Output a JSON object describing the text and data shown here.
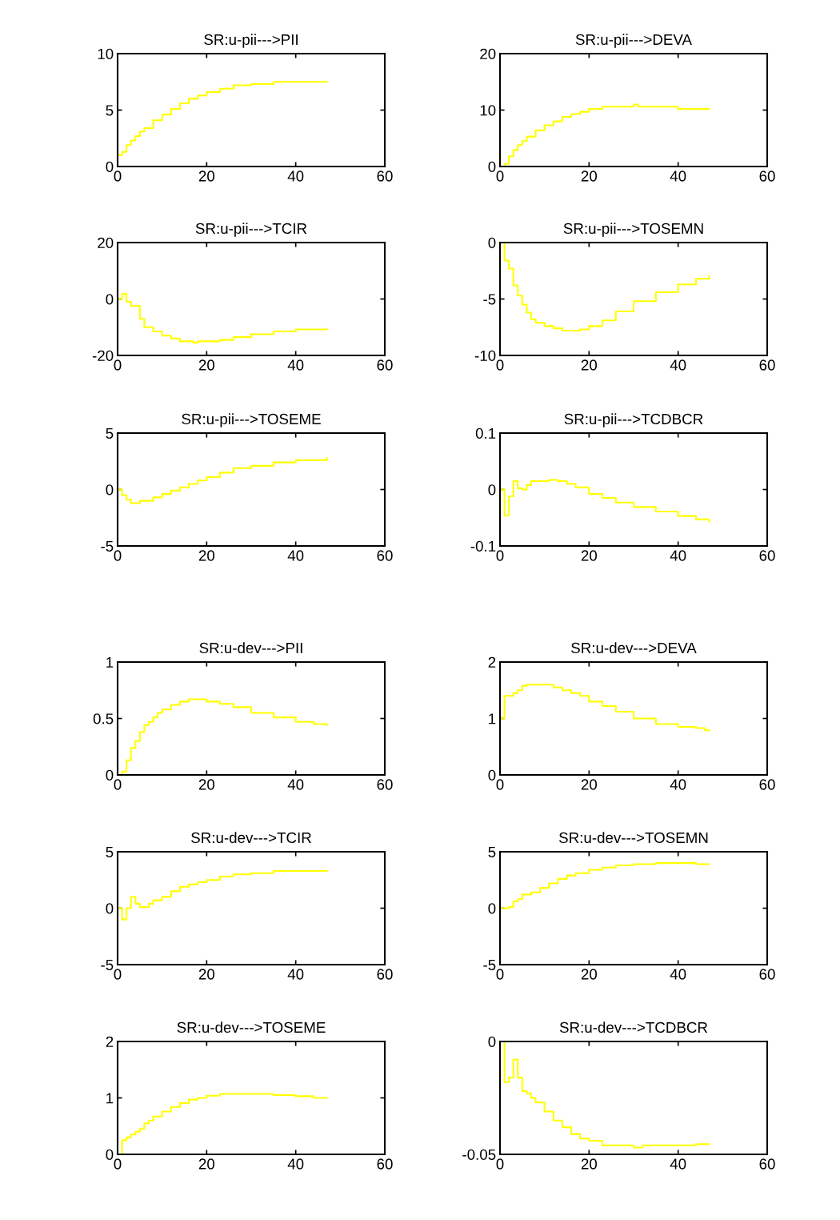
{
  "chart_data": [
    {
      "type": "step",
      "title": "SR:u-pii--->PII",
      "color": "#ffff00",
      "xlim": [
        0,
        60
      ],
      "xticks": [
        0,
        20,
        40,
        60
      ],
      "ylim": [
        0,
        10
      ],
      "yticks": [
        0,
        5,
        10
      ],
      "x": [
        0,
        1,
        2,
        3,
        4,
        5,
        6,
        8,
        10,
        12,
        14,
        16,
        18,
        20,
        23,
        26,
        30,
        35,
        40,
        47
      ],
      "values": [
        1.0,
        1.3,
        1.9,
        2.3,
        2.7,
        3.1,
        3.4,
        4.1,
        4.6,
        5.1,
        5.6,
        6.0,
        6.3,
        6.6,
        6.9,
        7.2,
        7.3,
        7.5,
        7.5,
        7.5
      ]
    },
    {
      "type": "step",
      "title": "SR:u-pii--->DEVA",
      "color": "#ffff00",
      "xlim": [
        0,
        60
      ],
      "xticks": [
        0,
        20,
        40,
        60
      ],
      "ylim": [
        0,
        20
      ],
      "yticks": [
        0,
        10,
        20
      ],
      "x": [
        0,
        1,
        2,
        3,
        4,
        5,
        6,
        8,
        10,
        12,
        14,
        16,
        18,
        20,
        23,
        26,
        30,
        31,
        35,
        40,
        47
      ],
      "values": [
        0,
        0.5,
        1.8,
        2.9,
        3.8,
        4.5,
        5.3,
        6.4,
        7.3,
        8.0,
        8.8,
        9.3,
        9.7,
        10.2,
        10.6,
        10.6,
        11.0,
        10.6,
        10.6,
        10.2,
        10.2
      ]
    },
    {
      "type": "step",
      "title": "SR:u-pii--->TCIR",
      "color": "#ffff00",
      "xlim": [
        0,
        60
      ],
      "xticks": [
        0,
        20,
        40,
        60
      ],
      "ylim": [
        -20,
        20
      ],
      "yticks": [
        -20,
        0,
        20
      ],
      "x": [
        0,
        1,
        2,
        3,
        5,
        6,
        8,
        10,
        12,
        14,
        17,
        18,
        23,
        26,
        30,
        35,
        40,
        47
      ],
      "values": [
        0,
        1.8,
        -1,
        -2.5,
        -7,
        -10,
        -11.5,
        -13,
        -14,
        -15,
        -15.5,
        -15,
        -14.5,
        -13.5,
        -12.5,
        -11.5,
        -10.8,
        -10.5
      ]
    },
    {
      "type": "step",
      "title": "SR:u-pii--->TOSEMN",
      "color": "#ffff00",
      "xlim": [
        0,
        60
      ],
      "xticks": [
        0,
        20,
        40,
        60
      ],
      "ylim": [
        -10,
        0
      ],
      "yticks": [
        -10,
        -5,
        0
      ],
      "x": [
        0,
        1,
        2,
        3,
        4,
        5,
        6,
        7,
        8,
        10,
        12,
        14,
        17,
        18,
        20,
        23,
        26,
        30,
        35,
        40,
        44,
        47
      ],
      "values": [
        0,
        -1.6,
        -2.3,
        -3.8,
        -4.7,
        -5.5,
        -6.2,
        -6.8,
        -7.1,
        -7.4,
        -7.6,
        -7.8,
        -7.8,
        -7.7,
        -7.4,
        -6.9,
        -6.1,
        -5.2,
        -4.4,
        -3.7,
        -3.2,
        -3.0
      ]
    },
    {
      "type": "step",
      "title": "SR:u-pii--->TOSEME",
      "color": "#ffff00",
      "xlim": [
        0,
        60
      ],
      "xticks": [
        0,
        20,
        40,
        60
      ],
      "ylim": [
        -5,
        5
      ],
      "yticks": [
        -5,
        0,
        5
      ],
      "x": [
        0,
        1,
        2,
        3,
        5,
        8,
        10,
        12,
        14,
        16,
        18,
        20,
        23,
        26,
        30,
        35,
        40,
        46,
        47
      ],
      "values": [
        0,
        -0.5,
        -0.9,
        -1.2,
        -1.0,
        -0.7,
        -0.4,
        -0.1,
        0.2,
        0.5,
        0.8,
        1.1,
        1.5,
        1.9,
        2.1,
        2.4,
        2.6,
        2.6,
        2.8
      ]
    },
    {
      "type": "step",
      "title": "SR:u-pii--->TCDBCR",
      "color": "#ffff00",
      "xlim": [
        0,
        60
      ],
      "xticks": [
        0,
        20,
        40,
        60
      ],
      "ylim": [
        -0.1,
        0.1
      ],
      "yticks": [
        -0.1,
        0,
        0.1
      ],
      "x": [
        0,
        1,
        2,
        3,
        4,
        5,
        6,
        7,
        11,
        13,
        15,
        17,
        20,
        23,
        26,
        30,
        35,
        40,
        44,
        47
      ],
      "values": [
        0,
        -0.046,
        -0.012,
        0.015,
        0.002,
        0.0,
        0.008,
        0.015,
        0.017,
        0.015,
        0.01,
        0.004,
        -0.008,
        -0.015,
        -0.023,
        -0.031,
        -0.039,
        -0.047,
        -0.053,
        -0.057
      ]
    },
    {
      "type": "step",
      "title": "SR:u-dev--->PII",
      "color": "#ffff00",
      "xlim": [
        0,
        60
      ],
      "xticks": [
        0,
        20,
        40,
        60
      ],
      "ylim": [
        0,
        1
      ],
      "yticks": [
        0,
        0.5,
        1
      ],
      "x": [
        0,
        1,
        2,
        3,
        4,
        5,
        6,
        7,
        8,
        9,
        10,
        12,
        14,
        16,
        18,
        20,
        23,
        26,
        30,
        35,
        40,
        44,
        47
      ],
      "values": [
        0,
        0.03,
        0.13,
        0.24,
        0.3,
        0.38,
        0.44,
        0.47,
        0.51,
        0.55,
        0.58,
        0.62,
        0.65,
        0.67,
        0.67,
        0.65,
        0.63,
        0.6,
        0.55,
        0.51,
        0.47,
        0.45,
        0.44
      ]
    },
    {
      "type": "step",
      "title": "SR:u-dev--->DEVA",
      "color": "#ffff00",
      "xlim": [
        0,
        60
      ],
      "xticks": [
        0,
        20,
        40,
        60
      ],
      "ylim": [
        0,
        2
      ],
      "yticks": [
        0,
        1,
        2
      ],
      "x": [
        0,
        1,
        3,
        4,
        5,
        6,
        10,
        12,
        14,
        16,
        18,
        20,
        23,
        26,
        30,
        35,
        40,
        44,
        46,
        47
      ],
      "values": [
        1.0,
        1.4,
        1.45,
        1.5,
        1.58,
        1.6,
        1.6,
        1.55,
        1.5,
        1.45,
        1.4,
        1.3,
        1.22,
        1.12,
        1.0,
        0.9,
        0.85,
        0.83,
        0.79,
        0.79
      ]
    },
    {
      "type": "step",
      "title": "SR:u-dev--->TCIR",
      "color": "#ffff00",
      "xlim": [
        0,
        60
      ],
      "xticks": [
        0,
        20,
        40,
        60
      ],
      "ylim": [
        -5,
        5
      ],
      "yticks": [
        -5,
        0,
        5
      ],
      "x": [
        0,
        1,
        2,
        3,
        4,
        5,
        7,
        8,
        10,
        12,
        14,
        16,
        18,
        20,
        23,
        26,
        30,
        35,
        40,
        47
      ],
      "values": [
        0,
        -1.0,
        0,
        1.0,
        0.4,
        0.1,
        0.4,
        0.7,
        1.0,
        1.5,
        1.9,
        2.1,
        2.3,
        2.5,
        2.8,
        3.0,
        3.1,
        3.3,
        3.3,
        3.3
      ]
    },
    {
      "type": "step",
      "title": "SR:u-dev--->TOSEMN",
      "color": "#ffff00",
      "xlim": [
        0,
        60
      ],
      "xticks": [
        0,
        20,
        40,
        60
      ],
      "ylim": [
        -5,
        5
      ],
      "yticks": [
        -5,
        0,
        5
      ],
      "x": [
        0,
        2,
        3,
        4,
        5,
        7,
        9,
        11,
        13,
        15,
        17,
        20,
        23,
        26,
        30,
        35,
        40,
        44,
        47
      ],
      "values": [
        0,
        0.1,
        0.6,
        0.8,
        1.2,
        1.4,
        1.8,
        2.2,
        2.6,
        2.9,
        3.1,
        3.4,
        3.6,
        3.8,
        3.9,
        4.0,
        4.0,
        3.9,
        3.9
      ]
    },
    {
      "type": "step",
      "title": "SR:u-dev--->TOSEME",
      "color": "#ffff00",
      "xlim": [
        0,
        60
      ],
      "xticks": [
        0,
        20,
        40,
        60
      ],
      "ylim": [
        0,
        2
      ],
      "yticks": [
        0,
        1,
        2
      ],
      "x": [
        0,
        1,
        2,
        3,
        4,
        5,
        6,
        7,
        8,
        10,
        12,
        14,
        16,
        18,
        20,
        23,
        26,
        30,
        35,
        40,
        44,
        47
      ],
      "values": [
        0,
        0.25,
        0.3,
        0.35,
        0.4,
        0.45,
        0.55,
        0.6,
        0.67,
        0.76,
        0.84,
        0.91,
        0.97,
        1.0,
        1.04,
        1.07,
        1.07,
        1.07,
        1.05,
        1.03,
        1.0,
        1.0
      ]
    },
    {
      "type": "step",
      "title": "SR:u-dev--->TCDBCR",
      "color": "#ffff00",
      "xlim": [
        0,
        60
      ],
      "xticks": [
        0,
        20,
        40,
        60
      ],
      "ylim": [
        -0.05,
        0
      ],
      "yticks": [
        -0.05,
        0
      ],
      "x": [
        0,
        1,
        2,
        3,
        4,
        5,
        6,
        7,
        8,
        10,
        12,
        14,
        16,
        18,
        20,
        23,
        26,
        30,
        32,
        40,
        44,
        47
      ],
      "values": [
        0,
        -0.018,
        -0.016,
        -0.008,
        -0.016,
        -0.022,
        -0.023,
        -0.025,
        -0.027,
        -0.031,
        -0.035,
        -0.038,
        -0.041,
        -0.043,
        -0.044,
        -0.046,
        -0.046,
        -0.047,
        -0.046,
        -0.046,
        -0.0455,
        -0.0455
      ]
    }
  ]
}
